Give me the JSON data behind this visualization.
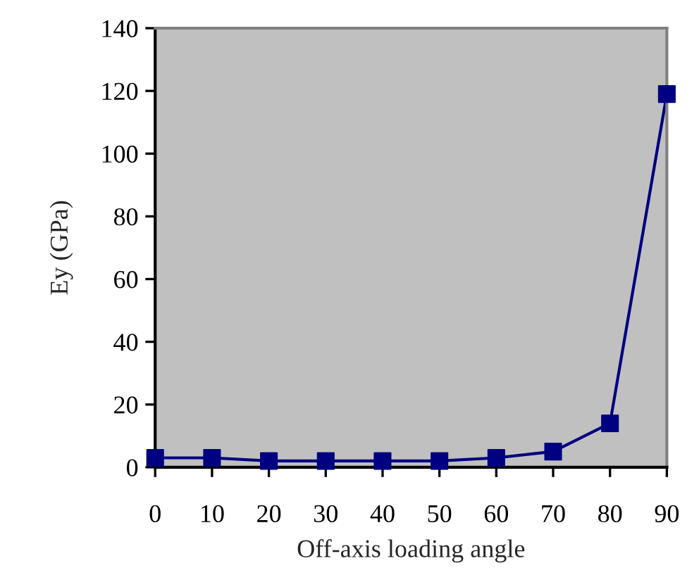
{
  "chart_data": {
    "type": "line",
    "xlabel": "Off-axis loading angle",
    "ylabel": "Ey (GPa)",
    "x": [
      0,
      10,
      20,
      30,
      40,
      50,
      60,
      70,
      80,
      90
    ],
    "series": [
      {
        "color": "#000080",
        "values": [
          3,
          3,
          2,
          2,
          2,
          2,
          3,
          5,
          14,
          119
        ]
      }
    ],
    "xlim": [
      0,
      90
    ],
    "xticks": [
      0,
      10,
      20,
      30,
      40,
      50,
      60,
      70,
      80,
      90
    ],
    "ylim": [
      0,
      140
    ],
    "yticks": [
      0,
      20,
      40,
      60,
      80,
      100,
      120,
      140
    ],
    "marker": "square",
    "line_style": "solid",
    "grid": false,
    "legend": false
  }
}
